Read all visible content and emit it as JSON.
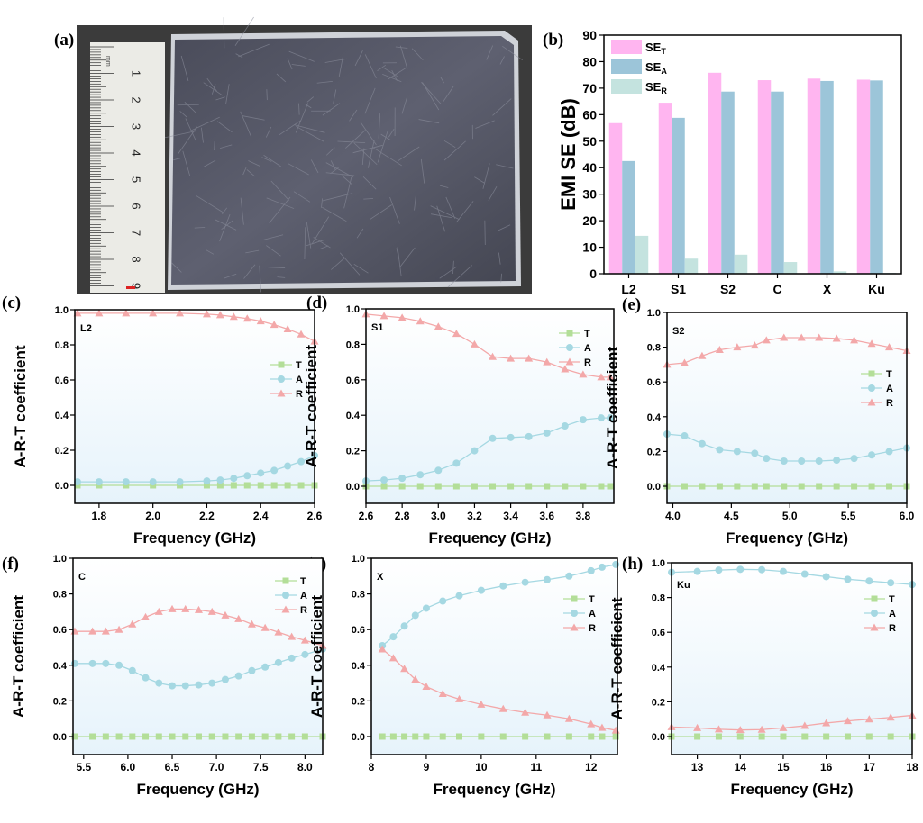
{
  "panel_labels": [
    "(a)",
    "(b)",
    "(c)",
    "(d)",
    "(e)",
    "(f)",
    "(g)",
    "(h)"
  ],
  "photo": {
    "ruler_numbers": [
      "1",
      "2",
      "3",
      "4",
      "5",
      "6",
      "7",
      "8",
      "9"
    ],
    "ruler_unit": "mm"
  },
  "colors": {
    "T": "#b3de98",
    "A": "#a5d8e2",
    "R": "#f3a8a9",
    "SE_T": "#ffb5f0",
    "SE_A": "#9cc5d9",
    "SE_R": "#c4e3df"
  },
  "chart_data": [
    {
      "type": "bar",
      "ylabel": "EMI SE (dB)",
      "ylim": [
        0,
        90
      ],
      "yticks": [
        "0",
        "10",
        "20",
        "30",
        "40",
        "50",
        "60",
        "70",
        "80",
        "90"
      ],
      "categories": [
        "L2",
        "S1",
        "S2",
        "C",
        "X",
        "Ku"
      ],
      "legend": "top-left",
      "series": [
        {
          "name": "SE",
          "sub": "T",
          "values": [
            56.8,
            64.5,
            75.8,
            73.0,
            73.6,
            73.2
          ]
        },
        {
          "name": "SE",
          "sub": "A",
          "values": [
            42.5,
            58.8,
            68.7,
            68.7,
            72.7,
            72.9
          ]
        },
        {
          "name": "SE",
          "sub": "R",
          "values": [
            14.3,
            5.7,
            7.2,
            4.4,
            0.9,
            0.3
          ]
        }
      ]
    },
    {
      "type": "line",
      "annotation": "L2",
      "xlabel": "Frequency (GHz)",
      "ylabel": "A-R-T coefficient",
      "xlim": [
        1.71,
        2.6
      ],
      "ylim": [
        -0.1,
        1.0
      ],
      "xticks": [
        "1.8",
        "2.0",
        "2.2",
        "2.4",
        "2.6"
      ],
      "yticks": [
        "0.0",
        "0.2",
        "0.4",
        "0.6",
        "0.8",
        "1.0"
      ],
      "legend": "right",
      "x": [
        1.72,
        1.8,
        1.9,
        2.0,
        2.1,
        2.2,
        2.25,
        2.3,
        2.35,
        2.4,
        2.45,
        2.5,
        2.55,
        2.6
      ],
      "series": [
        {
          "name": "T",
          "values": [
            0,
            0,
            0,
            0,
            0,
            0,
            0,
            0,
            0,
            0,
            0,
            0,
            0,
            0
          ]
        },
        {
          "name": "A",
          "values": [
            0.02,
            0.02,
            0.02,
            0.02,
            0.02,
            0.025,
            0.03,
            0.04,
            0.055,
            0.07,
            0.085,
            0.11,
            0.135,
            0.17
          ]
        },
        {
          "name": "R",
          "values": [
            0.98,
            0.98,
            0.98,
            0.98,
            0.98,
            0.975,
            0.97,
            0.96,
            0.95,
            0.935,
            0.915,
            0.89,
            0.86,
            0.82
          ]
        }
      ]
    },
    {
      "type": "line",
      "annotation": "S1",
      "xlabel": "Frequency (GHz)",
      "ylabel": "A-R-T coefficient",
      "xlim": [
        2.6,
        3.97
      ],
      "ylim": [
        -0.1,
        1.0
      ],
      "xticks": [
        "2.6",
        "2.8",
        "3.0",
        "3.2",
        "3.4",
        "3.6",
        "3.8"
      ],
      "yticks": [
        "0.0",
        "0.2",
        "0.4",
        "0.6",
        "0.8",
        "1.0"
      ],
      "legend": "top-right",
      "x": [
        2.6,
        2.7,
        2.8,
        2.9,
        3.0,
        3.1,
        3.2,
        3.3,
        3.4,
        3.5,
        3.6,
        3.7,
        3.8,
        3.9,
        3.95
      ],
      "series": [
        {
          "name": "T",
          "values": [
            0,
            0,
            0,
            0,
            0,
            0,
            0,
            0,
            0,
            0,
            0,
            0,
            0,
            0,
            0
          ]
        },
        {
          "name": "A",
          "values": [
            0.03,
            0.035,
            0.045,
            0.065,
            0.09,
            0.13,
            0.2,
            0.27,
            0.275,
            0.28,
            0.3,
            0.34,
            0.375,
            0.385,
            0.385
          ]
        },
        {
          "name": "R",
          "values": [
            0.97,
            0.96,
            0.95,
            0.93,
            0.9,
            0.86,
            0.8,
            0.73,
            0.72,
            0.72,
            0.7,
            0.66,
            0.63,
            0.615,
            0.615
          ]
        }
      ]
    },
    {
      "type": "line",
      "annotation": "S2",
      "xlabel": "Frequency (GHz)",
      "ylabel": "A-R-T coefficient",
      "xlim": [
        3.95,
        6.0
      ],
      "ylim": [
        -0.1,
        1.0
      ],
      "xticks": [
        "4.0",
        "4.5",
        "5.0",
        "5.5",
        "6.0"
      ],
      "yticks": [
        "0.0",
        "0.2",
        "0.4",
        "0.6",
        "0.8",
        "1.0"
      ],
      "legend": "right",
      "x": [
        3.95,
        4.1,
        4.25,
        4.4,
        4.55,
        4.7,
        4.8,
        4.95,
        5.1,
        5.25,
        5.4,
        5.55,
        5.7,
        5.85,
        6.0
      ],
      "series": [
        {
          "name": "T",
          "values": [
            0,
            0,
            0,
            0,
            0,
            0,
            0,
            0,
            0,
            0,
            0,
            0,
            0,
            0,
            0
          ]
        },
        {
          "name": "A",
          "values": [
            0.3,
            0.29,
            0.245,
            0.21,
            0.2,
            0.19,
            0.16,
            0.145,
            0.145,
            0.145,
            0.15,
            0.16,
            0.18,
            0.2,
            0.22
          ]
        },
        {
          "name": "R",
          "values": [
            0.7,
            0.71,
            0.75,
            0.785,
            0.8,
            0.81,
            0.84,
            0.855,
            0.855,
            0.855,
            0.85,
            0.84,
            0.82,
            0.8,
            0.78
          ]
        }
      ]
    },
    {
      "type": "line",
      "annotation": "C",
      "xlabel": "Frequency (GHz)",
      "ylabel": "A-R-T coefficient",
      "xlim": [
        5.38,
        8.2
      ],
      "ylim": [
        -0.1,
        1.0
      ],
      "xticks": [
        "5.5",
        "6.0",
        "6.5",
        "7.0",
        "7.5",
        "8.0"
      ],
      "yticks": [
        "0.0",
        "0.2",
        "0.4",
        "0.6",
        "0.8",
        "1.0"
      ],
      "legend": "top-right",
      "x": [
        5.4,
        5.6,
        5.75,
        5.9,
        6.05,
        6.2,
        6.35,
        6.5,
        6.65,
        6.8,
        6.95,
        7.1,
        7.25,
        7.4,
        7.55,
        7.7,
        7.85,
        8.0,
        8.2
      ],
      "series": [
        {
          "name": "T",
          "values": [
            0,
            0,
            0,
            0,
            0,
            0,
            0,
            0,
            0,
            0,
            0,
            0,
            0,
            0,
            0,
            0,
            0,
            0,
            0
          ]
        },
        {
          "name": "A",
          "values": [
            0.41,
            0.41,
            0.41,
            0.4,
            0.37,
            0.33,
            0.3,
            0.285,
            0.285,
            0.29,
            0.3,
            0.32,
            0.34,
            0.37,
            0.39,
            0.415,
            0.44,
            0.46,
            0.49
          ]
        },
        {
          "name": "R",
          "values": [
            0.59,
            0.59,
            0.59,
            0.6,
            0.63,
            0.67,
            0.7,
            0.715,
            0.715,
            0.71,
            0.7,
            0.68,
            0.66,
            0.63,
            0.61,
            0.585,
            0.56,
            0.54,
            0.51
          ]
        }
      ]
    },
    {
      "type": "line",
      "annotation": "X",
      "xlabel": "Frequency (GHz)",
      "ylabel": "A-R-T coefficient",
      "xlim": [
        8.0,
        12.48
      ],
      "ylim": [
        -0.1,
        1.0
      ],
      "xticks": [
        "8",
        "9",
        "10",
        "11",
        "12"
      ],
      "yticks": [
        "0.0",
        "0.2",
        "0.4",
        "0.6",
        "0.8",
        "1.0"
      ],
      "legend": "right",
      "x": [
        8.2,
        8.4,
        8.6,
        8.8,
        9.0,
        9.3,
        9.6,
        10,
        10.4,
        10.8,
        11.2,
        11.6,
        12.0,
        12.2,
        12.45
      ],
      "series": [
        {
          "name": "T",
          "values": [
            0,
            0,
            0,
            0,
            0,
            0,
            0,
            0,
            0,
            0,
            0,
            0,
            0,
            0,
            0
          ]
        },
        {
          "name": "A",
          "values": [
            0.51,
            0.56,
            0.62,
            0.68,
            0.72,
            0.76,
            0.79,
            0.82,
            0.845,
            0.865,
            0.88,
            0.9,
            0.93,
            0.95,
            0.965
          ]
        },
        {
          "name": "R",
          "values": [
            0.49,
            0.44,
            0.38,
            0.32,
            0.28,
            0.24,
            0.21,
            0.18,
            0.155,
            0.135,
            0.12,
            0.1,
            0.07,
            0.05,
            0.035
          ]
        }
      ]
    },
    {
      "type": "line",
      "annotation": "Ku",
      "xlabel": "Frequency (GHz)",
      "ylabel": "A-R-T coefficient",
      "xlim": [
        12.4,
        18
      ],
      "ylim": [
        -0.1,
        1.0
      ],
      "xticks": [
        "13",
        "14",
        "15",
        "16",
        "17",
        "18"
      ],
      "yticks": [
        "0.0",
        "0.2",
        "0.4",
        "0.6",
        "0.8",
        "1.0"
      ],
      "legend": "right",
      "x": [
        12.4,
        13,
        13.5,
        14,
        14.5,
        15,
        15.5,
        16,
        16.5,
        17,
        17.5,
        18
      ],
      "series": [
        {
          "name": "T",
          "values": [
            0,
            0,
            0,
            0,
            0,
            0,
            0,
            0,
            0,
            0,
            0,
            0
          ]
        },
        {
          "name": "A",
          "values": [
            0.945,
            0.95,
            0.958,
            0.962,
            0.96,
            0.95,
            0.935,
            0.92,
            0.905,
            0.895,
            0.885,
            0.875
          ]
        },
        {
          "name": "R",
          "values": [
            0.055,
            0.05,
            0.042,
            0.038,
            0.04,
            0.05,
            0.062,
            0.078,
            0.09,
            0.1,
            0.11,
            0.122
          ]
        }
      ]
    }
  ]
}
